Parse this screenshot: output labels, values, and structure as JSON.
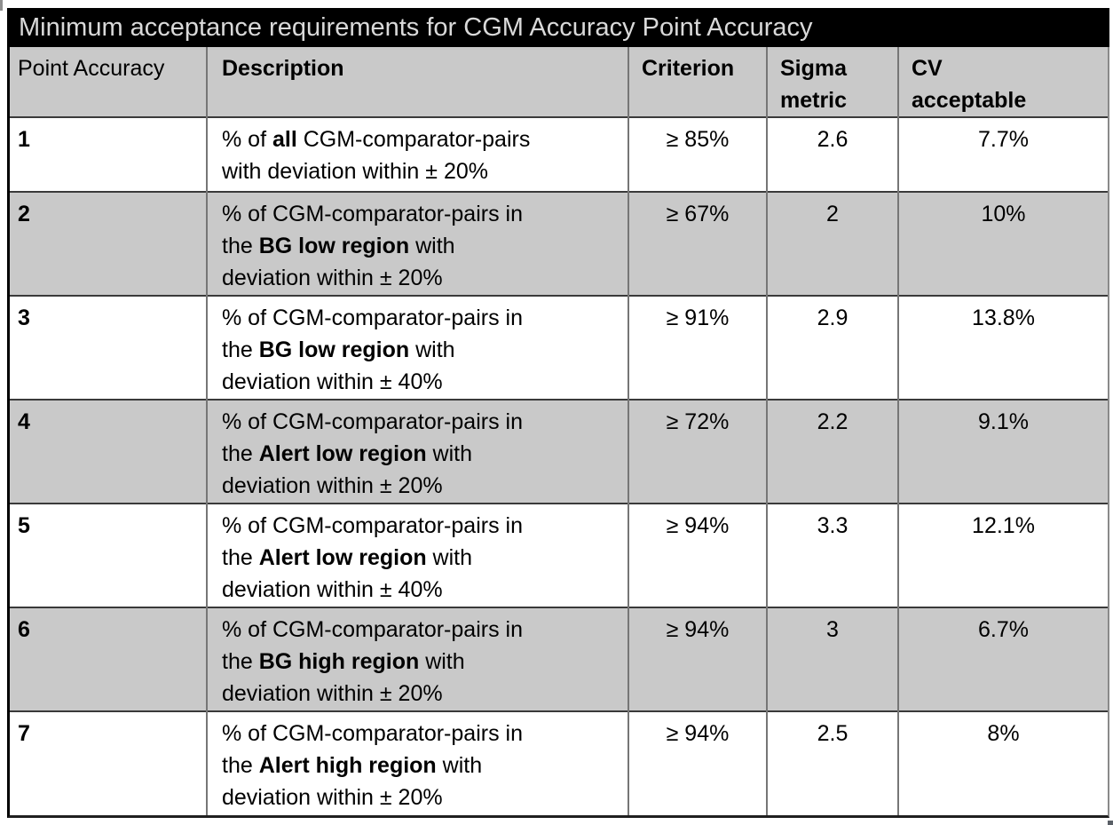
{
  "title_bar": {
    "text": "Minimum acceptance requirements for CGM Accuracy Point Accuracy"
  },
  "colors": {
    "title_bg": "#000000",
    "title_text": "#d9d9d9",
    "shaded_row": "#c9c9c9",
    "body_text": "#000000"
  },
  "table": {
    "columns": [
      {
        "id": "point",
        "label_lines": [
          "Point Accuracy"
        ],
        "bold": false
      },
      {
        "id": "description",
        "label_lines": [
          "Description"
        ],
        "bold": true
      },
      {
        "id": "criterion",
        "label_lines": [
          "Criterion"
        ],
        "bold": true
      },
      {
        "id": "sigma",
        "label_lines": [
          "Sigma",
          "metric"
        ],
        "bold": true
      },
      {
        "id": "cv",
        "label_lines": [
          "CV",
          "acceptable"
        ],
        "bold": true
      }
    ],
    "rows": [
      {
        "point": "1",
        "description_lines": [
          [
            {
              "t": "% of ",
              "b": false
            },
            {
              "t": "all",
              "b": true
            },
            {
              "t": " CGM-comparator-pairs",
              "b": false
            }
          ],
          [
            {
              "t": "with deviation within ± 20%",
              "b": false
            }
          ]
        ],
        "criterion": "≥ 85%",
        "sigma": "2.6",
        "cv": "7.7%",
        "shaded": false
      },
      {
        "point": "2",
        "description_lines": [
          [
            {
              "t": "% of CGM-comparator-pairs in",
              "b": false
            }
          ],
          [
            {
              "t": "the ",
              "b": false
            },
            {
              "t": "BG low region",
              "b": true
            },
            {
              "t": " with",
              "b": false
            }
          ],
          [
            {
              "t": "deviation within ± 20%",
              "b": false
            }
          ]
        ],
        "criterion": "≥ 67%",
        "sigma": "2",
        "cv": "10%",
        "shaded": true
      },
      {
        "point": "3",
        "description_lines": [
          [
            {
              "t": "% of CGM-comparator-pairs in",
              "b": false
            }
          ],
          [
            {
              "t": "the ",
              "b": false
            },
            {
              "t": "BG low region",
              "b": true
            },
            {
              "t": " with",
              "b": false
            }
          ],
          [
            {
              "t": "deviation within ± 40%",
              "b": false
            }
          ]
        ],
        "criterion": "≥ 91%",
        "sigma": "2.9",
        "cv": "13.8%",
        "shaded": false
      },
      {
        "point": "4",
        "description_lines": [
          [
            {
              "t": "% of CGM-comparator-pairs in",
              "b": false
            }
          ],
          [
            {
              "t": "the ",
              "b": false
            },
            {
              "t": "Alert low region",
              "b": true
            },
            {
              "t": " with",
              "b": false
            }
          ],
          [
            {
              "t": "deviation within ± 20%",
              "b": false
            }
          ]
        ],
        "criterion": "≥ 72%",
        "sigma": "2.2",
        "cv": "9.1%",
        "shaded": true
      },
      {
        "point": "5",
        "description_lines": [
          [
            {
              "t": "% of CGM-comparator-pairs in",
              "b": false
            }
          ],
          [
            {
              "t": "the ",
              "b": false
            },
            {
              "t": "Alert low region",
              "b": true
            },
            {
              "t": " with",
              "b": false
            }
          ],
          [
            {
              "t": "deviation within ± 40%",
              "b": false
            }
          ]
        ],
        "criterion": "≥ 94%",
        "sigma": "3.3",
        "cv": "12.1%",
        "shaded": false
      },
      {
        "point": "6",
        "description_lines": [
          [
            {
              "t": "% of CGM-comparator-pairs in",
              "b": false
            }
          ],
          [
            {
              "t": "the ",
              "b": false
            },
            {
              "t": "BG high region",
              "b": true
            },
            {
              "t": " with",
              "b": false
            }
          ],
          [
            {
              "t": "deviation within ± 20%",
              "b": false
            }
          ]
        ],
        "criterion": "≥ 94%",
        "sigma": "3",
        "cv": "6.7%",
        "shaded": true
      },
      {
        "point": "7",
        "description_lines": [
          [
            {
              "t": "% of CGM-comparator-pairs in",
              "b": false
            }
          ],
          [
            {
              "t": "the ",
              "b": false
            },
            {
              "t": "Alert high region",
              "b": true
            },
            {
              "t": " with",
              "b": false
            }
          ],
          [
            {
              "t": "deviation within ± 20%",
              "b": false
            }
          ]
        ],
        "criterion": "≥ 94%",
        "sigma": "2.5",
        "cv": "8%",
        "shaded": false
      }
    ]
  }
}
